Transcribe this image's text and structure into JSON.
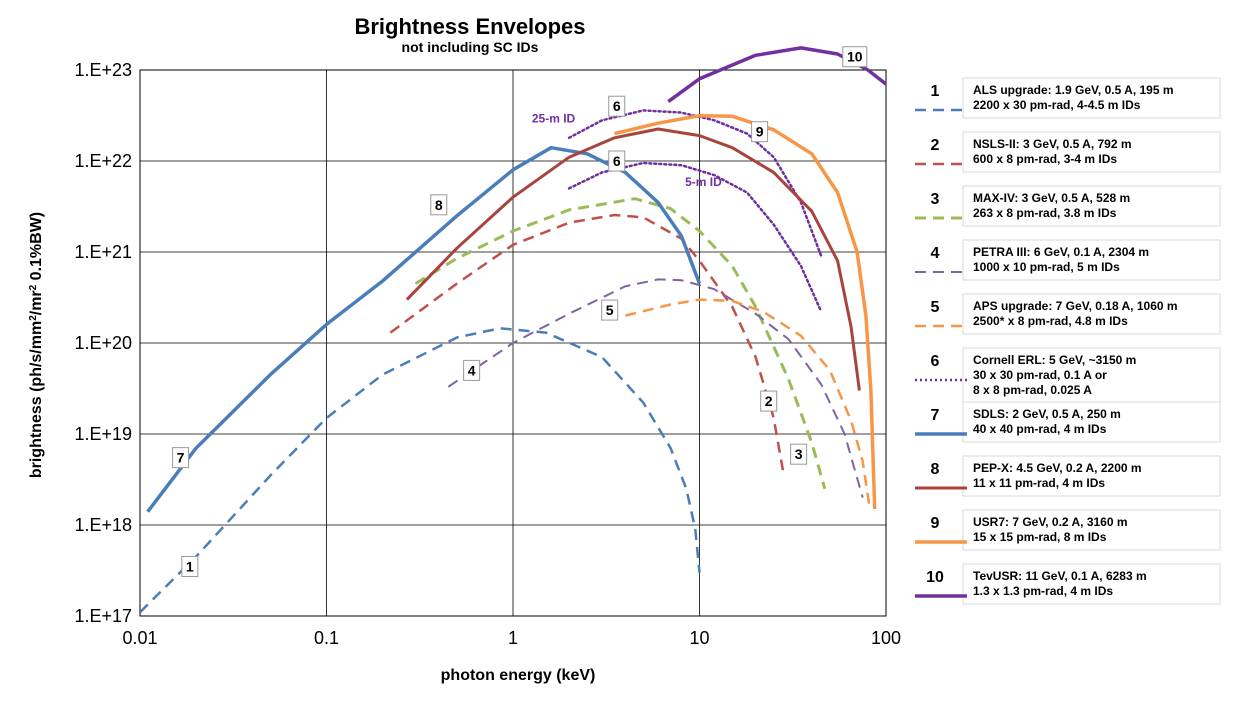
{
  "chart_data": {
    "type": "line",
    "title": "Brightness Envelopes",
    "subtitle": "not including SC IDs",
    "xlabel": "photon energy (keV)",
    "ylabel_parts": [
      "brightness (ph/s/mm",
      "2",
      "/mr",
      "2",
      " 0.1%BW)"
    ],
    "x_scale": "log",
    "y_scale": "log",
    "xlim": [
      0.01,
      100
    ],
    "ylim": [
      1e+17,
      1e+23
    ],
    "x_ticks": [
      {
        "value": 0.01,
        "label": "0.01"
      },
      {
        "value": 0.1,
        "label": "0.1"
      },
      {
        "value": 1,
        "label": "1"
      },
      {
        "value": 10,
        "label": "10"
      },
      {
        "value": 100,
        "label": "100"
      }
    ],
    "y_ticks": [
      {
        "value": 1e+17,
        "label": "1.E+17"
      },
      {
        "value": 1e+18,
        "label": "1.E+18"
      },
      {
        "value": 1e+19,
        "label": "1.E+19"
      },
      {
        "value": 1e+20,
        "label": "1.E+20"
      },
      {
        "value": 1e+21,
        "label": "1.E+21"
      },
      {
        "value": 1e+22,
        "label": "1.E+22"
      },
      {
        "value": 1e+23,
        "label": "1.E+23"
      }
    ],
    "grid": true,
    "legend_position": "right",
    "series": [
      {
        "id": "1",
        "color": "#4A7EBB",
        "dash": "dashed",
        "width": 2.5,
        "legend": [
          "ALS upgrade: 1.9 GeV, 0.5 A, 195 m",
          "2200 x 30 pm-rad, 4-4.5 m IDs"
        ],
        "tags": [
          {
            "label": "1",
            "x": 0.0185,
            "y": 3.5e+17
          }
        ],
        "points": [
          [
            0.01,
            1.1e+17
          ],
          [
            0.02,
            4.5e+17
          ],
          [
            0.05,
            3.5e+18
          ],
          [
            0.1,
            1.5e+19
          ],
          [
            0.2,
            4.5e+19
          ],
          [
            0.5,
            1.15e+20
          ],
          [
            0.85,
            1.45e+20
          ],
          [
            1.5,
            1.3e+20
          ],
          [
            3,
            7e+19
          ],
          [
            5,
            2.2e+19
          ],
          [
            7,
            7e+18
          ],
          [
            8.5,
            2.5e+18
          ],
          [
            9.5,
            9e+17
          ],
          [
            10,
            3e+17
          ]
        ]
      },
      {
        "id": "2",
        "color": "#C0504D",
        "dash": "dashed",
        "width": 2.5,
        "legend": [
          "NSLS-II: 3 GeV, 0.5 A,  792 m",
          "600 x 8 pm-rad, 3-4 m IDs"
        ],
        "tags": [
          {
            "label": "2",
            "x": 23.5,
            "y": 2.3e+19
          }
        ],
        "points": [
          [
            0.22,
            1.3e+20
          ],
          [
            0.5,
            4.5e+20
          ],
          [
            1,
            1.2e+21
          ],
          [
            2,
            2.1e+21
          ],
          [
            3.5,
            2.55e+21
          ],
          [
            5,
            2.4e+21
          ],
          [
            8,
            1.4e+21
          ],
          [
            10,
            8e+20
          ],
          [
            15,
            2.5e+20
          ],
          [
            20,
            7e+19
          ],
          [
            25,
            1.5e+19
          ],
          [
            28,
            4e+18
          ]
        ]
      },
      {
        "id": "3",
        "color": "#9BBB59",
        "dash": "dashed",
        "width": 3,
        "legend": [
          "MAX-IV: 3 GeV, 0.5 A, 528 m",
          "263 x 8 pm-rad, 3.8 m IDs"
        ],
        "tags": [
          {
            "label": "3",
            "x": 34,
            "y": 6e+18
          }
        ],
        "points": [
          [
            0.3,
            4.5e+20
          ],
          [
            0.5,
            8.5e+20
          ],
          [
            1,
            1.7e+21
          ],
          [
            2,
            2.9e+21
          ],
          [
            4.5,
            3.85e+21
          ],
          [
            7,
            3e+21
          ],
          [
            10,
            1.7e+21
          ],
          [
            15,
            7e+20
          ],
          [
            20,
            2.5e+20
          ],
          [
            30,
            4e+19
          ],
          [
            40,
            8e+18
          ],
          [
            47,
            2.5e+18
          ]
        ]
      },
      {
        "id": "4",
        "color": "#8064A2",
        "dash": "dashed",
        "width": 2,
        "legend": [
          "PETRA III: 6 GeV, 0.1 A, 2304 m",
          "1000 x 10 pm-rad, 5 m IDs"
        ],
        "tags": [
          {
            "label": "4",
            "x": 0.6,
            "y": 5e+19
          }
        ],
        "points": [
          [
            0.45,
            3.3e+19
          ],
          [
            1,
            1e+20
          ],
          [
            2,
            2.1e+20
          ],
          [
            4,
            4.2e+20
          ],
          [
            6,
            5e+20
          ],
          [
            8,
            4.9e+20
          ],
          [
            12,
            3.9e+20
          ],
          [
            20,
            2.1e+20
          ],
          [
            30,
            1.1e+20
          ],
          [
            45,
            3.5e+19
          ],
          [
            60,
            1e+19
          ],
          [
            75,
            2e+18
          ]
        ]
      },
      {
        "id": "5",
        "color": "#F79646",
        "dash": "dashed",
        "width": 2.5,
        "legend": [
          "APS upgrade: 7 GeV, 0.18 A, 1060 m",
          "2500* x 8 pm-rad, 4.8 m IDs"
        ],
        "tags": [
          {
            "label": "5",
            "x": 3.3,
            "y": 2.3e+20
          }
        ],
        "points": [
          [
            4,
            2e+20
          ],
          [
            7,
            2.65e+20
          ],
          [
            10,
            3e+20
          ],
          [
            15,
            2.9e+20
          ],
          [
            22,
            2.2e+20
          ],
          [
            35,
            1.2e+20
          ],
          [
            50,
            5e+19
          ],
          [
            65,
            1.4e+19
          ],
          [
            75,
            5e+18
          ],
          [
            82,
            1.5e+18
          ]
        ]
      },
      {
        "id": "6",
        "color": "#7030A0",
        "dash": "dotted",
        "width": 2.5,
        "legend": [
          "Cornell ERL:  5 GeV, ~3150 m",
          "30 x 30 pm-rad, 0.1 A or",
          "8 x 8 pm-rad, 0.025 A"
        ],
        "tags": [
          {
            "label": "6",
            "x": 3.6,
            "y": 4e+22
          },
          {
            "label": "6",
            "x": 3.6,
            "y": 1e+22
          }
        ],
        "annotations": [
          {
            "text": "25-m ID",
            "x": 1.65,
            "y": 2.65e+22
          },
          {
            "text": "5-m ID",
            "x": 10.5,
            "y": 5.3e+21
          }
        ],
        "points_25m": [
          [
            2,
            1.8e+22
          ],
          [
            3,
            2.8e+22
          ],
          [
            5,
            3.6e+22
          ],
          [
            8,
            3.4e+22
          ],
          [
            12,
            2.8e+22
          ],
          [
            18,
            2e+22
          ],
          [
            25,
            1.1e+22
          ],
          [
            35,
            3.5e+21
          ],
          [
            45,
            9e+20
          ]
        ],
        "points_5m": [
          [
            2,
            5e+21
          ],
          [
            3,
            7.5e+21
          ],
          [
            5,
            9.5e+21
          ],
          [
            8,
            9e+21
          ],
          [
            12,
            7e+21
          ],
          [
            18,
            4.5e+21
          ],
          [
            25,
            2e+21
          ],
          [
            35,
            7e+20
          ],
          [
            45,
            2.2e+20
          ]
        ]
      },
      {
        "id": "7",
        "color": "#4A7EBB",
        "dash": "solid",
        "width": 3.5,
        "legend": [
          "SDLS:  2 GeV, 0.5 A, 250 m",
          "40 x 40 pm-rad, 4 m IDs"
        ],
        "tags": [
          {
            "label": "7",
            "x": 0.0165,
            "y": 5.5e+18
          }
        ],
        "points": [
          [
            0.011,
            1.4e+18
          ],
          [
            0.02,
            7e+18
          ],
          [
            0.05,
            4.5e+19
          ],
          [
            0.1,
            1.6e+20
          ],
          [
            0.2,
            4.8e+20
          ],
          [
            0.5,
            2.5e+21
          ],
          [
            1,
            8e+21
          ],
          [
            1.6,
            1.4e+22
          ],
          [
            2.5,
            1.2e+22
          ],
          [
            4,
            7.5e+21
          ],
          [
            6,
            3.5e+21
          ],
          [
            8,
            1.5e+21
          ],
          [
            10,
            4.5e+20
          ]
        ]
      },
      {
        "id": "8",
        "color": "#A9443C",
        "dash": "solid",
        "width": 3,
        "legend": [
          "PEP-X: 4.5 GeV, 0.2 A, 2200 m",
          "11 x 11 pm-rad, 4 m IDs"
        ],
        "tags": [
          {
            "label": "8",
            "x": 0.4,
            "y": 3.3e+21
          }
        ],
        "points": [
          [
            0.27,
            3e+20
          ],
          [
            0.5,
            1.1e+21
          ],
          [
            1,
            4e+21
          ],
          [
            2,
            1.1e+22
          ],
          [
            3.5,
            1.8e+22
          ],
          [
            6,
            2.25e+22
          ],
          [
            10,
            1.9e+22
          ],
          [
            15,
            1.4e+22
          ],
          [
            25,
            7.5e+21
          ],
          [
            40,
            2.8e+21
          ],
          [
            55,
            8e+20
          ],
          [
            65,
            1.5e+20
          ],
          [
            72,
            3e+19
          ]
        ]
      },
      {
        "id": "9",
        "color": "#F79646",
        "dash": "solid",
        "width": 3.5,
        "legend": [
          "USR7:  7 GeV, 0.2 A, 3160 m",
          "15 x 15 pm-rad, 8 m IDs"
        ],
        "tags": [
          {
            "label": "9",
            "x": 21,
            "y": 2.1e+22
          }
        ],
        "points": [
          [
            3.5,
            2e+22
          ],
          [
            6,
            2.6e+22
          ],
          [
            10,
            3.15e+22
          ],
          [
            15,
            3.1e+22
          ],
          [
            25,
            2.2e+22
          ],
          [
            40,
            1.2e+22
          ],
          [
            55,
            4.5e+21
          ],
          [
            70,
            1e+21
          ],
          [
            78,
            2e+20
          ],
          [
            83,
            3e+19
          ],
          [
            87,
            1.5e+18
          ]
        ]
      },
      {
        "id": "10",
        "color": "#7030A0",
        "dash": "solid",
        "width": 3.5,
        "legend": [
          "TevUSR:  11 GeV, 0.1 A, 6283 m",
          "1.3 x 1.3 pm-rad, 4 m IDs"
        ],
        "tags": [
          {
            "label": "10",
            "x": 68,
            "y": 1.4e+23
          }
        ],
        "points": [
          [
            6.8,
            4.5e+22
          ],
          [
            10,
            8e+22
          ],
          [
            20,
            1.45e+23
          ],
          [
            35,
            1.75e+23
          ],
          [
            55,
            1.5e+23
          ],
          [
            80,
            1e+23
          ],
          [
            100,
            7e+22
          ]
        ]
      }
    ]
  }
}
